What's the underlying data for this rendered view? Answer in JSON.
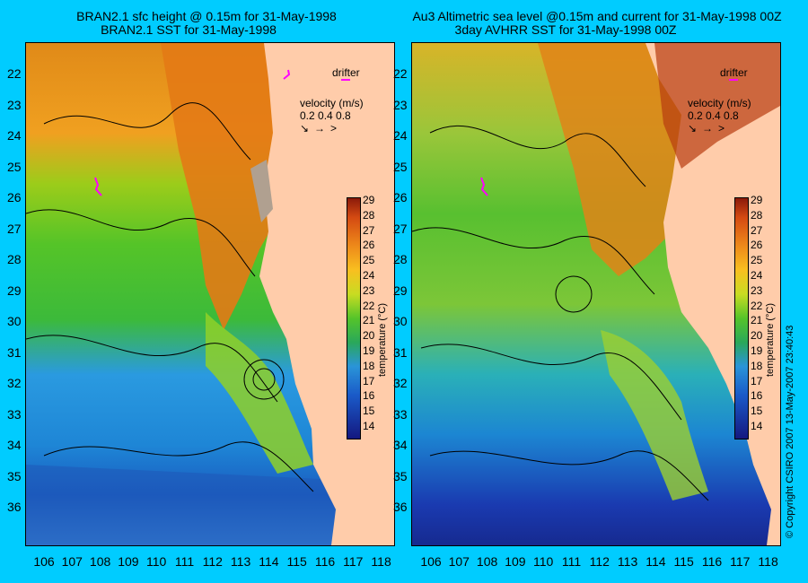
{
  "left_panel": {
    "title_line1": "BRAN2.1 sfc height @ 0.15m for 31-May-1998",
    "title_line2": "BRAN2.1 SST for 31-May-1998"
  },
  "right_panel": {
    "title_line1": "Au3 Altimetric sea level  @0.15m and current for 31-May-1998 00Z",
    "title_line2": "3day AVHRR SST for 31-May-1998 00Z"
  },
  "legend": {
    "drifter_label": "drifter",
    "velocity_label": "velocity (m/s)",
    "velocity_scale": "0.2 0.4 0.8"
  },
  "colorbar": {
    "label": "temperature (°C)",
    "ticks": [
      "29",
      "28",
      "27",
      "26",
      "25",
      "24",
      "23",
      "22",
      "21",
      "20",
      "19",
      "18",
      "17",
      "16",
      "15",
      "14"
    ]
  },
  "lat_labels": [
    "22",
    "23",
    "24",
    "25",
    "26",
    "27",
    "28",
    "29",
    "30",
    "31",
    "32",
    "33",
    "34",
    "35",
    "36"
  ],
  "lon_labels": [
    "106",
    "107",
    "108",
    "109",
    "110",
    "111",
    "112",
    "113",
    "114",
    "115",
    "116",
    "117",
    "118"
  ],
  "copyright": "© Copyright CSIRO 2007   13-May-2007 23:40:43",
  "colors": {
    "background": "#00ccff",
    "land": "#ffccaa",
    "drifter": "#ff00ff",
    "warm": "#e07010",
    "mid": "#44cc22",
    "cool": "#1166cc"
  }
}
